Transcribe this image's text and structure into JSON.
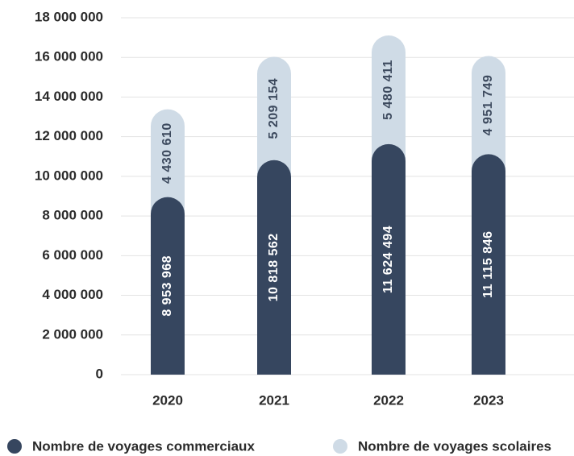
{
  "chart_data": {
    "type": "stacked-bar",
    "categories": [
      "2020",
      "2021",
      "2022",
      "2023"
    ],
    "series": [
      {
        "name": "Nombre de voyages commerciaux",
        "color": "#36465f",
        "values": [
          8953968,
          10818562,
          11624494,
          11115846
        ],
        "value_labels": [
          "8 953 968",
          "10 818 562",
          "11 624 494",
          "11 115 846"
        ]
      },
      {
        "name": "Nombre de voyages scolaires",
        "color": "#cfdbe6",
        "values": [
          4430610,
          5209154,
          5480411,
          4951749
        ],
        "value_labels": [
          "4 430 610",
          "5 209 154",
          "5 480 411",
          "4 951 749"
        ]
      }
    ],
    "ylim": [
      0,
      18000000
    ],
    "yticks": [
      0,
      {
        "value": 2000000,
        "label": "2 000 000"
      },
      {
        "value": 4000000,
        "label": "4 000 000"
      },
      {
        "value": 6000000,
        "label": "6 000 000"
      },
      {
        "value": 8000000,
        "label": "8 000 000"
      },
      {
        "value": 10000000,
        "label": "10 000 000"
      },
      {
        "value": 12000000,
        "label": "12 000 000"
      },
      {
        "value": 14000000,
        "label": "14 000 000"
      },
      {
        "value": 16000000,
        "label": "16 000 000"
      },
      {
        "value": 18000000,
        "label": "18 000 000"
      }
    ],
    "grid": true,
    "legend": "bottom"
  }
}
